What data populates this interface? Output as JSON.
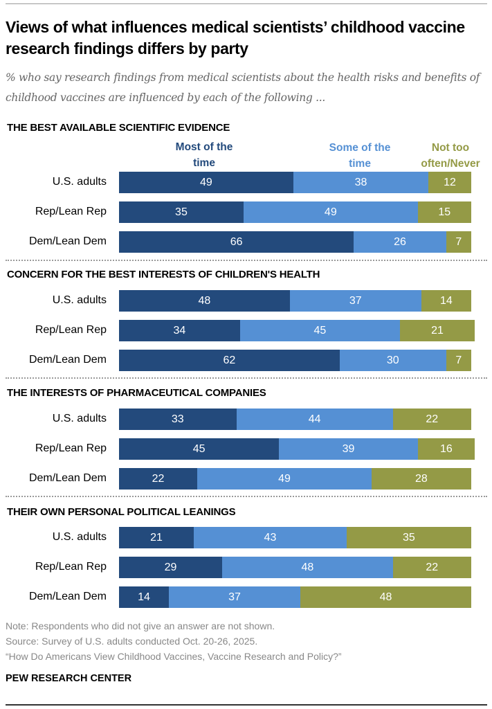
{
  "title": "Views of what influences medical scientists’ childhood vaccine research findings differs by party",
  "subtitle": "% who say research findings from medical scientists about the health risks and benefits of childhood vaccines are influenced by each of the following ...",
  "colors": {
    "most": "#234a7c",
    "some": "#5590d4",
    "not": "#949a46"
  },
  "legend": [
    "Most of the time",
    "Some of the time",
    "Not too often/Never"
  ],
  "chart_data": {
    "type": "bar",
    "orientation": "horizontal-stacked",
    "categories": [
      "U.S. adults",
      "Rep/Lean Rep",
      "Dem/Lean Dem"
    ],
    "series_names": [
      "Most of the time",
      "Some of the time",
      "Not too often/Never"
    ],
    "xlim": [
      0,
      100
    ],
    "panels": [
      {
        "title": "THE BEST AVAILABLE SCIENTIFIC EVIDENCE",
        "rows": [
          [
            49,
            38,
            12
          ],
          [
            35,
            49,
            15
          ],
          [
            66,
            26,
            7
          ]
        ]
      },
      {
        "title": "CONCERN FOR THE BEST INTERESTS OF CHILDREN'S HEALTH",
        "rows": [
          [
            48,
            37,
            14
          ],
          [
            34,
            45,
            21
          ],
          [
            62,
            30,
            7
          ]
        ]
      },
      {
        "title": "THE INTERESTS OF PHARMACEUTICAL COMPANIES",
        "rows": [
          [
            33,
            44,
            22
          ],
          [
            45,
            39,
            16
          ],
          [
            22,
            49,
            28
          ]
        ]
      },
      {
        "title": "THEIR OWN PERSONAL POLITICAL LEANINGS",
        "rows": [
          [
            21,
            43,
            35
          ],
          [
            29,
            48,
            22
          ],
          [
            14,
            37,
            48
          ]
        ]
      }
    ]
  },
  "footer": {
    "note": "Note: Respondents who did not give an answer are not shown.",
    "source": "Source: Survey of U.S. adults conducted Oct. 20-26, 2025.",
    "report": "“How Do Americans View Childhood Vaccines, Vaccine Research and Policy?”",
    "brand": "PEW RESEARCH CENTER"
  }
}
